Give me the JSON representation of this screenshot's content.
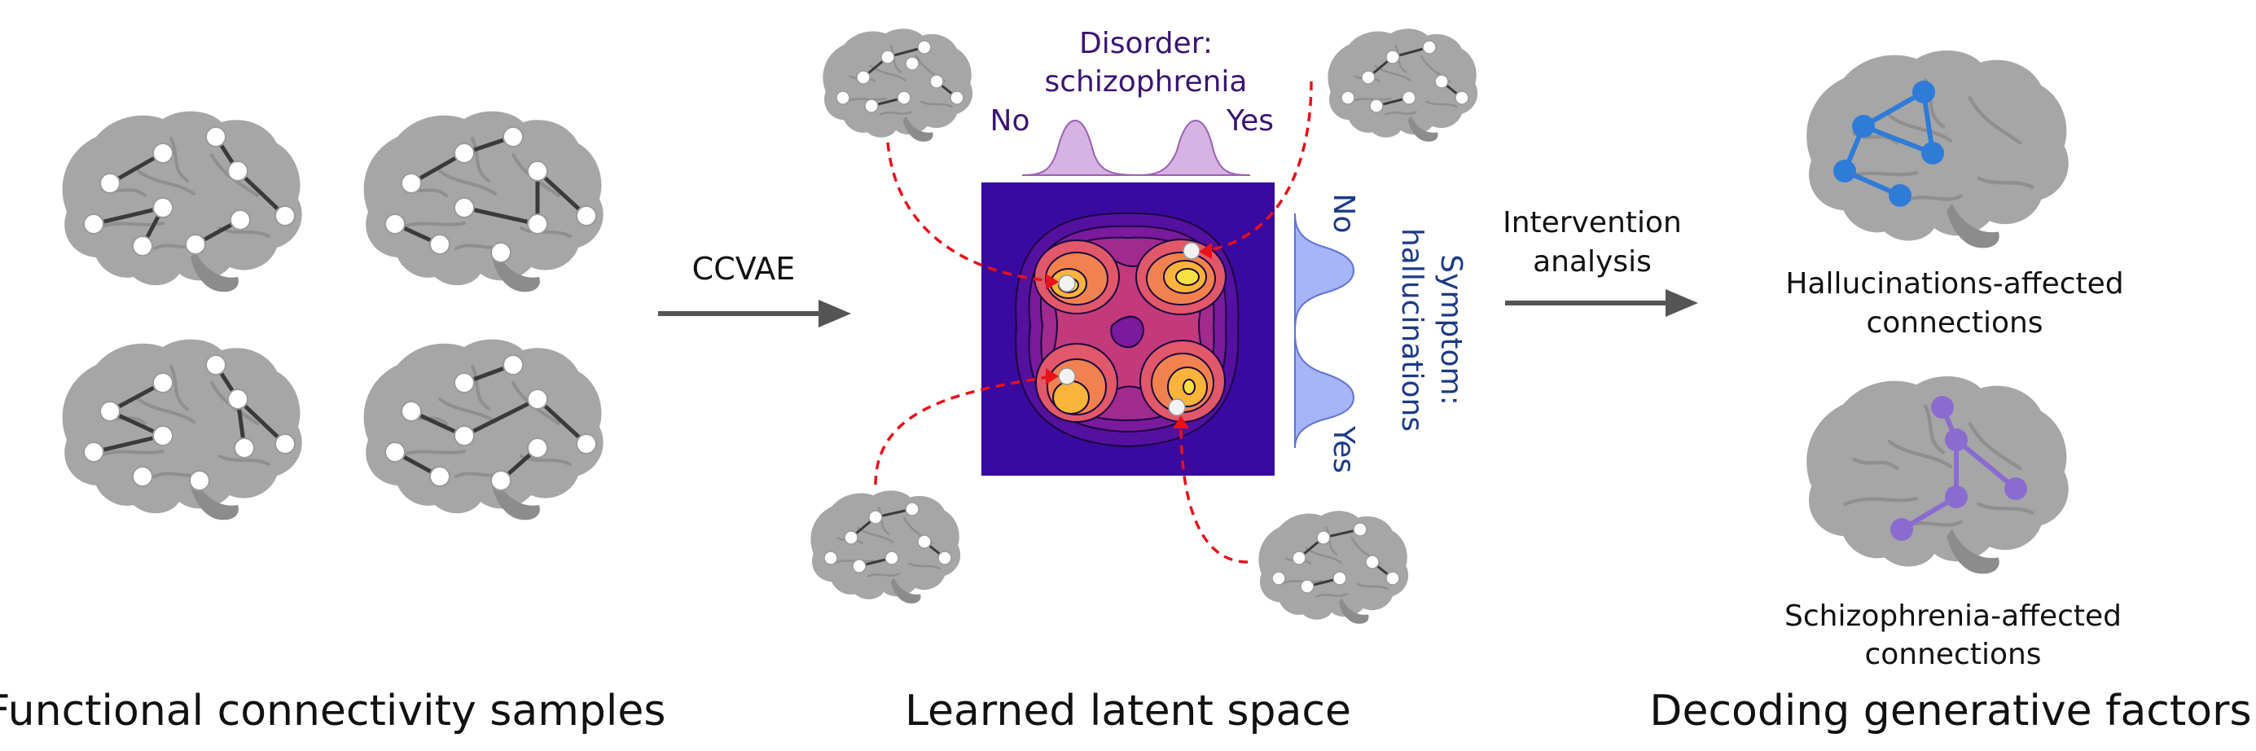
{
  "labels": {
    "arrow1": "CCVAE",
    "arrow2_line1": "Intervention",
    "arrow2_line2": "analysis",
    "disorder_title_line1": "Disorder:",
    "disorder_title_line2": "schizophrenia",
    "disorder_no": "No",
    "disorder_yes": "Yes",
    "symptom_title_line1": "Symptom:",
    "symptom_title_line2": "hallucinations",
    "symptom_no": "No",
    "symptom_yes": "Yes",
    "halluc_line1": "Hallucinations-affected",
    "halluc_line2": "connections",
    "schiz_line1": "Schizophrenia-affected",
    "schiz_line2": "connections"
  },
  "sections": {
    "left_caption": "Functional connectivity samples",
    "middle_caption": "Learned latent space",
    "right_caption": "Decoding generative factors"
  },
  "colors": {
    "brain": "#a6a6a6",
    "brain_dark": "#8c8c8c",
    "edge": "#3a3a3a",
    "arrow": "#555555",
    "dashed": "#e8101a",
    "purple_text": "#3b1473",
    "blue_text": "#1c3a86",
    "halluc": "#2f7bd8",
    "schiz": "#8a6cd0",
    "pdf_top": "#c89ad8",
    "pdf_side": "#8ea2f5"
  }
}
